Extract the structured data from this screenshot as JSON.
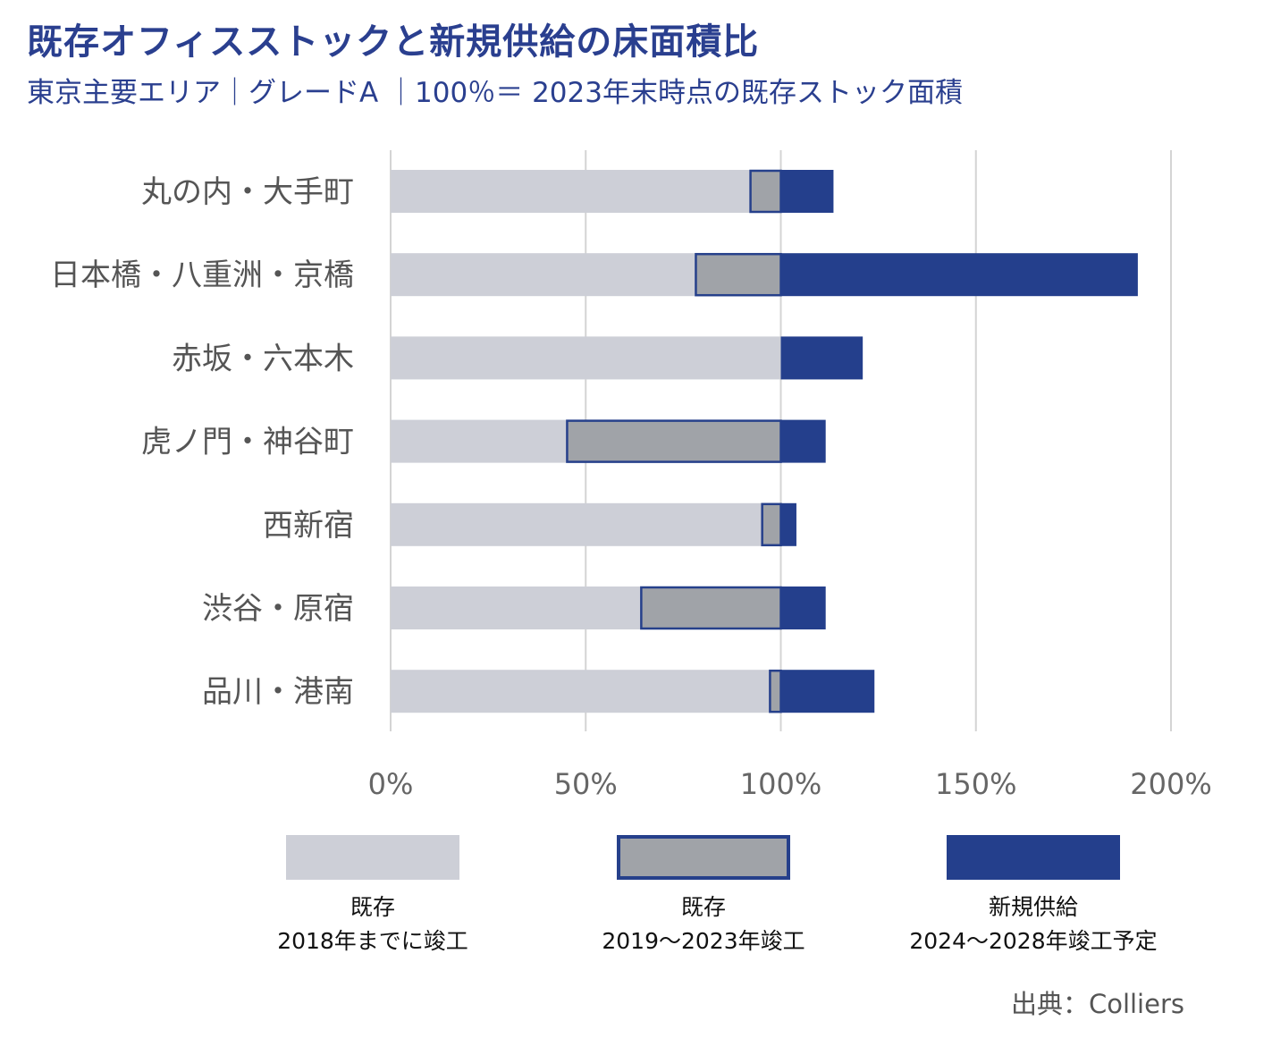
{
  "chart_data": {
    "type": "bar",
    "orientation": "horizontal",
    "stacked": true,
    "title": "既存オフィスストックと新規供給の床面積比",
    "subtitle": "東京主要エリア｜グレードA ｜100％＝ 2023年末時点の既存ストック面積",
    "categories": [
      "丸の内・大手町",
      "日本橋・八重洲・京橋",
      "赤坂・六本木",
      "虎ノ門・神谷町",
      "西新宿",
      "渋谷・原宿",
      "品川・港南"
    ],
    "series": [
      {
        "name": "既存\n2018年までに竣工",
        "values": [
          92,
          78,
          100,
          45,
          95,
          64,
          97
        ],
        "color": "#cdcfd7"
      },
      {
        "name": "既存\n2019〜2023年竣工",
        "values": [
          8,
          22,
          0,
          55,
          5,
          36,
          3
        ],
        "color": "#a0a3a8",
        "stroke": "#26408b"
      },
      {
        "name": "新規供給\n2024〜2028年竣工予定",
        "values": [
          13.5,
          91.5,
          21,
          11.5,
          4,
          11.5,
          24
        ],
        "color": "#243f8c"
      }
    ],
    "xlim": [
      0,
      200
    ],
    "xticks": [
      0,
      50,
      100,
      150,
      200
    ],
    "xtick_labels": [
      "0%",
      "50%",
      "100%",
      "150%",
      "200%"
    ],
    "grid": true,
    "legend_position": "bottom"
  },
  "source": "出典：Colliers"
}
